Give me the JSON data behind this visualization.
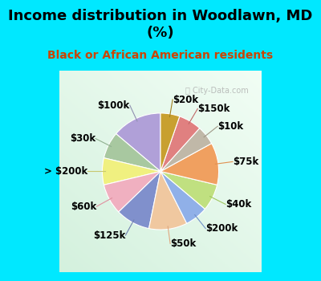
{
  "title": "Income distribution in Woodlawn, MD\n(%)",
  "subtitle": "Black or African American residents",
  "watermark": "ⓘ City-Data.com",
  "labels": [
    "$100k",
    "$30k",
    "> $200k",
    "$60k",
    "$125k",
    "$50k",
    "$200k",
    "$40k",
    "$75k",
    "$10k",
    "$150k",
    "$20k"
  ],
  "sizes": [
    13,
    7,
    7,
    8,
    9,
    10,
    6,
    7,
    11,
    5,
    6,
    5
  ],
  "colors": [
    "#b0a0d8",
    "#a8c8a0",
    "#f0f080",
    "#f0b0c0",
    "#8090cc",
    "#f0c8a0",
    "#90b0e8",
    "#c0e080",
    "#f0a060",
    "#c0b8a8",
    "#e08080",
    "#c8a030"
  ],
  "bg_color_outer": "#00e8ff",
  "bg_color_chart": "#d8ede0",
  "title_color": "#000000",
  "subtitle_color": "#cc4400",
  "label_fontsize": 8.5,
  "title_fontsize": 13,
  "subtitle_fontsize": 10,
  "startangle": 90,
  "label_distance": 1.25,
  "line_colors": [
    "#9090b0",
    "#90b090",
    "#c8c870",
    "#e090a0",
    "#7080b0",
    "#e0a880",
    "#7090c8",
    "#a0c860",
    "#e09050",
    "#a09888",
    "#c06868",
    "#a08020"
  ]
}
